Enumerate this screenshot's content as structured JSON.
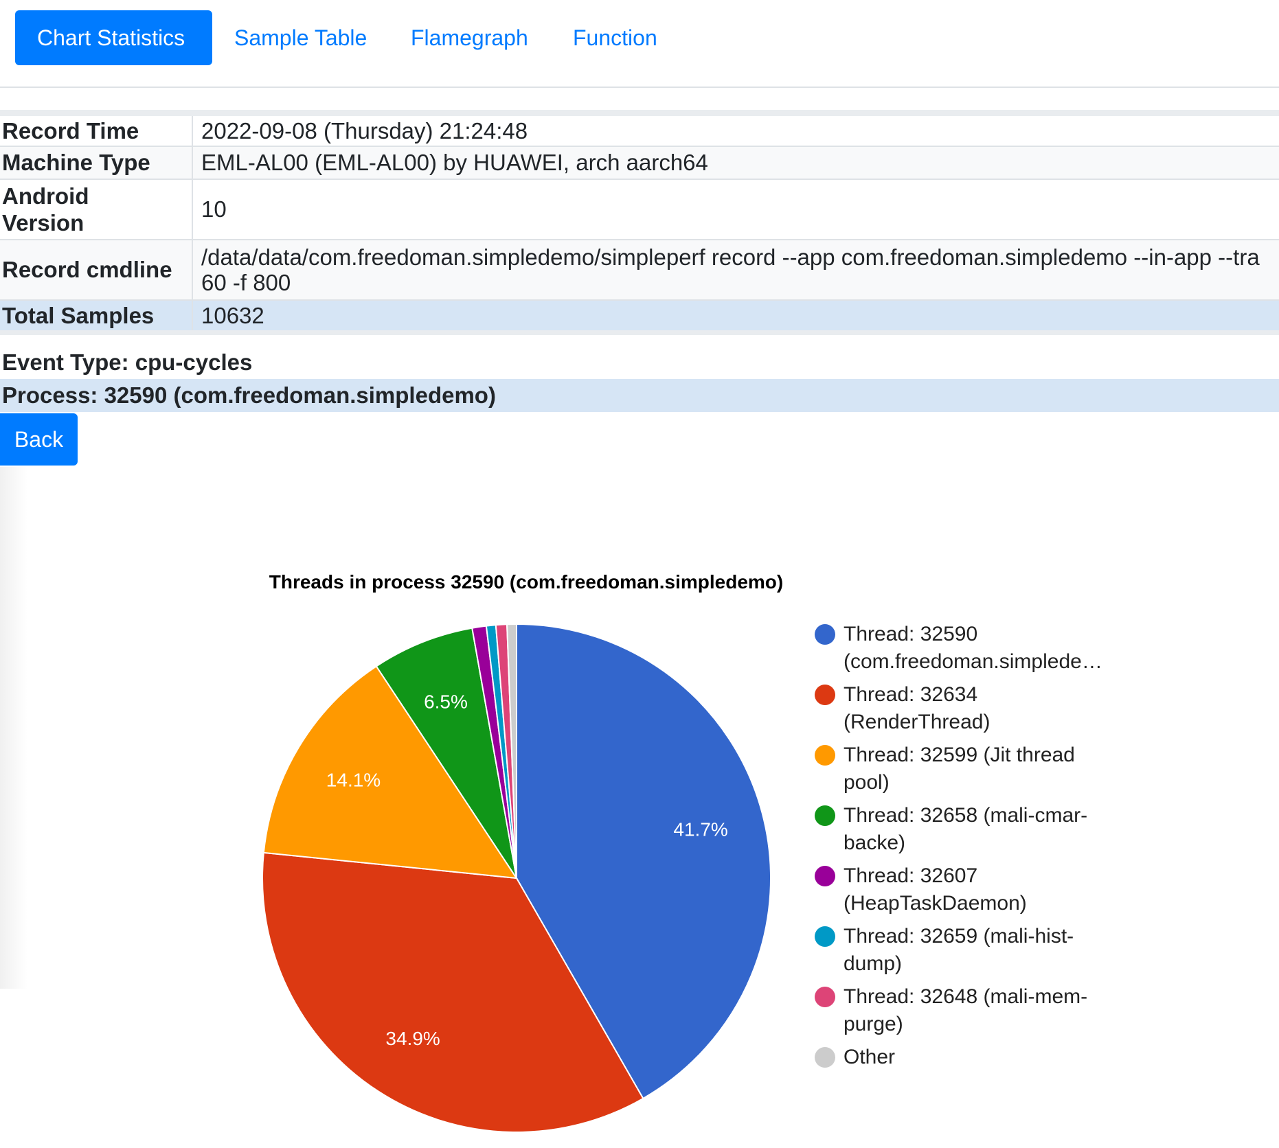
{
  "tabs": [
    {
      "label": "Chart Statistics",
      "active": true
    },
    {
      "label": "Sample Table",
      "active": false
    },
    {
      "label": "Flamegraph",
      "active": false
    },
    {
      "label": "Function",
      "active": false
    }
  ],
  "info": {
    "record_time_label": "Record Time",
    "record_time_value": "2022-09-08 (Thursday) 21:24:48",
    "machine_type_label": "Machine Type",
    "machine_type_value": "EML-AL00 (EML-AL00) by HUAWEI, arch aarch64",
    "android_version_label_line1": "Android",
    "android_version_label_line2": "Version",
    "android_version_value": "10",
    "record_cmdline_label": "Record cmdline",
    "record_cmdline_value_line1": "/data/data/com.freedoman.simpledemo/simpleperf record --app com.freedoman.simpledemo --in-app --tra",
    "record_cmdline_value_line2": "60 -f 800",
    "total_samples_label": "Total Samples",
    "total_samples_value": "10632"
  },
  "event_type": "Event Type: cpu-cycles",
  "process": "Process: 32590 (com.freedoman.simpledemo)",
  "back_label": "Back",
  "chart_data": {
    "type": "pie",
    "title": "Threads in process 32590 (com.freedoman.simpledemo)",
    "slices": [
      {
        "label_line1": "Thread: 32590",
        "label_line2": "(com.freedoman.simplede…",
        "value": 41.7,
        "color": "#3366cc",
        "show_label": "41.7%"
      },
      {
        "label_line1": "Thread: 32634",
        "label_line2": "(RenderThread)",
        "value": 34.9,
        "color": "#dc3912",
        "show_label": "34.9%"
      },
      {
        "label_line1": "Thread: 32599 (Jit thread",
        "label_line2": "pool)",
        "value": 14.1,
        "color": "#ff9900",
        "show_label": "14.1%"
      },
      {
        "label_line1": "Thread: 32658 (mali-cmar-",
        "label_line2": "backe)",
        "value": 6.5,
        "color": "#109618",
        "show_label": "6.5%"
      },
      {
        "label_line1": "Thread: 32607",
        "label_line2": "(HeapTaskDaemon)",
        "value": 0.9,
        "color": "#990099",
        "show_label": ""
      },
      {
        "label_line1": "Thread: 32659 (mali-hist-",
        "label_line2": "dump)",
        "value": 0.6,
        "color": "#0099c6",
        "show_label": ""
      },
      {
        "label_line1": "Thread: 32648 (mali-mem-",
        "label_line2": "purge)",
        "value": 0.7,
        "color": "#dd4477",
        "show_label": ""
      },
      {
        "label_line1": "Other",
        "label_line2": "",
        "value": 0.6,
        "color": "#cccccc",
        "show_label": ""
      }
    ]
  }
}
